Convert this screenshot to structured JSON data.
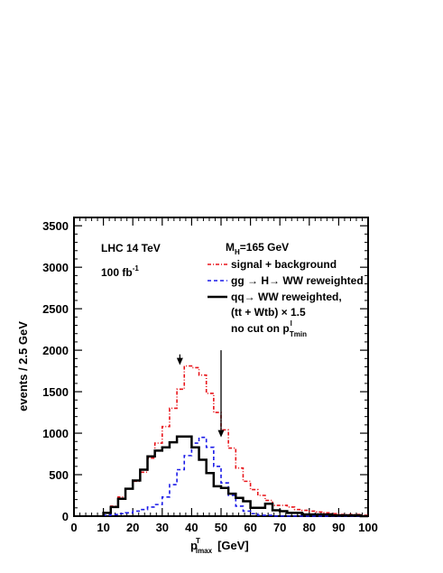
{
  "chart_data": {
    "type": "line",
    "step": true,
    "xlabel": {
      "base": "p",
      "sup": "T",
      "sub": "lmax",
      "unit": "[GeV]"
    },
    "ylabel": "events  / 2.5 GeV",
    "xlim": [
      0,
      100
    ],
    "ylim": [
      0,
      3600
    ],
    "xticks": [
      0,
      10,
      20,
      30,
      40,
      50,
      60,
      70,
      80,
      90,
      100
    ],
    "yticks": [
      0,
      500,
      1000,
      1500,
      2000,
      2500,
      3000,
      3500
    ],
    "bin_width": 2.5,
    "x_start": 10,
    "annotations": {
      "experiment": "LHC 14 TeV",
      "luminosity": "100 fb",
      "luminosity_sup": "-1"
    },
    "legend": {
      "mass_label": "M",
      "mass_sub": "H",
      "mass_value": "=165 GeV",
      "cut_note_main": "no cut on p",
      "cut_note_sup": "l",
      "cut_note_sub": "Tmin"
    },
    "series": [
      {
        "name": "signal + background",
        "color": "#e8141a",
        "dash": "dashdot",
        "values": [
          40,
          120,
          230,
          330,
          420,
          530,
          700,
          880,
          1080,
          1300,
          1530,
          1810,
          1790,
          1700,
          1480,
          1250,
          1040,
          820,
          580,
          420,
          320,
          250,
          190,
          130,
          130,
          110,
          80,
          70,
          60,
          50,
          40,
          30,
          20,
          20,
          20,
          10
        ]
      },
      {
        "name": "gg → H→ WW reweighted",
        "color": "#1a1ae8",
        "dash": "dashed",
        "values": [
          10,
          20,
          30,
          40,
          60,
          80,
          110,
          140,
          230,
          380,
          560,
          730,
          880,
          950,
          830,
          600,
          400,
          250,
          120,
          60,
          30,
          10,
          10,
          0,
          0,
          0,
          0,
          0,
          0,
          0,
          0,
          0,
          0,
          0,
          0,
          0
        ]
      },
      {
        "name": "qq→ WW reweighted,",
        "name_line2": "(tt + Wtb) × 1.5",
        "color": "#000000",
        "dash": "solid",
        "values": [
          40,
          110,
          210,
          330,
          430,
          560,
          720,
          790,
          830,
          890,
          960,
          960,
          830,
          680,
          520,
          360,
          340,
          270,
          220,
          180,
          100,
          100,
          150,
          70,
          60,
          40,
          40,
          20,
          20,
          20,
          20,
          10,
          10,
          10,
          10,
          0
        ]
      }
    ],
    "arrows": [
      {
        "x": 36,
        "y_top": 1950,
        "y_bottom": 1820
      },
      {
        "x": 50,
        "y_top": 2000,
        "y_bottom": 950
      }
    ]
  }
}
